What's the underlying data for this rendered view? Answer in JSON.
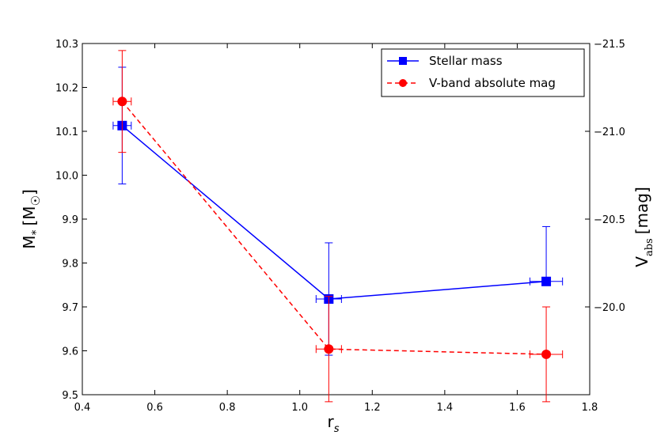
{
  "chart_data": {
    "type": "scatter",
    "xlabel_main": "r",
    "xlabel_sub": "s",
    "ylabel_left_main": "M",
    "ylabel_left_sub": "*",
    "ylabel_left_unit_open": "[M",
    "ylabel_left_unit_sub": "☉",
    "ylabel_left_unit_close": "]",
    "ylabel_right_main": "V",
    "ylabel_right_sub": "abs",
    "ylabel_right_unit": "[mag]",
    "xlim": [
      0.4,
      1.8
    ],
    "ylim_left": [
      9.5,
      10.3
    ],
    "ylim_right": [
      -19.5,
      -21.5
    ],
    "right_axis_inverted": true,
    "x_ticks": [
      "0.4",
      "0.6",
      "0.8",
      "1.0",
      "1.2",
      "1.4",
      "1.6",
      "1.8"
    ],
    "y_left_ticks": [
      "9.5",
      "9.6",
      "9.7",
      "9.8",
      "9.9",
      "10.0",
      "10.1",
      "10.2",
      "10.3"
    ],
    "y_right_ticks": [
      "−20.0",
      "−20.5",
      "−21.0",
      "−21.5"
    ],
    "grid": false,
    "legend_position": "top-right",
    "series": [
      {
        "name": "Stellar mass",
        "axis": "left",
        "color": "#0000ff",
        "line_style": "solid",
        "marker": "square",
        "x": [
          0.51,
          1.08,
          1.68
        ],
        "y": [
          10.113,
          9.718,
          9.758
        ],
        "xerr": [
          0.025,
          0.035,
          0.045
        ],
        "yerr_low": [
          0.133,
          0.128,
          0.0
        ],
        "yerr_high": [
          0.133,
          0.128,
          0.125
        ]
      },
      {
        "name": "V-band absolute mag",
        "axis": "right",
        "color": "#ff0000",
        "line_style": "dashed",
        "marker": "circle",
        "x": [
          0.51,
          1.08,
          1.68
        ],
        "y": [
          -21.17,
          -19.76,
          -19.73
        ],
        "xerr": [
          0.025,
          0.035,
          0.045
        ],
        "yerr": [
          0.29,
          0.3,
          0.27
        ]
      }
    ]
  }
}
